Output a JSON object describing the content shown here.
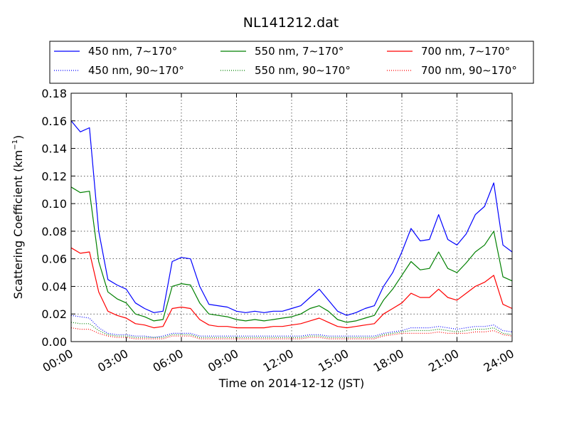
{
  "chart_data": {
    "type": "line",
    "title": "NL141212.dat",
    "xlabel": "Time on 2014-12-12 (JST)",
    "ylabel": "Scattering Coefficient (km",
    "ylabel_sup": "−1",
    "ylabel_end": ")",
    "xlim": [
      "00:00",
      "24:00"
    ],
    "ylim": [
      0.0,
      0.18
    ],
    "grid": true,
    "legend_position": "top, above plot",
    "x_ticks": [
      "00:00",
      "03:00",
      "06:00",
      "09:00",
      "12:00",
      "15:00",
      "18:00",
      "21:00",
      "24:00"
    ],
    "y_ticks": [
      "0.00",
      "0.02",
      "0.04",
      "0.06",
      "0.08",
      "0.10",
      "0.12",
      "0.14",
      "0.16",
      "0.18"
    ],
    "x_hours": [
      0,
      0.5,
      1,
      1.5,
      2,
      2.5,
      3,
      3.5,
      4,
      4.5,
      5,
      5.5,
      6,
      6.5,
      7,
      7.5,
      8,
      8.5,
      9,
      9.5,
      10,
      10.5,
      11,
      11.5,
      12,
      12.5,
      13,
      13.5,
      14,
      14.5,
      15,
      15.5,
      16,
      16.5,
      17,
      17.5,
      18,
      18.5,
      19,
      19.5,
      20,
      20.5,
      21,
      21.5,
      22,
      22.5,
      23,
      23.5,
      24
    ],
    "series": [
      {
        "name": "450 nm, 7∼170°",
        "color": "#0000ff",
        "style": "solid",
        "values": [
          0.16,
          0.152,
          0.155,
          0.08,
          0.045,
          0.041,
          0.038,
          0.028,
          0.024,
          0.021,
          0.022,
          0.058,
          0.061,
          0.06,
          0.04,
          0.027,
          0.026,
          0.025,
          0.022,
          0.021,
          0.022,
          0.021,
          0.022,
          0.022,
          0.024,
          0.026,
          0.032,
          0.038,
          0.03,
          0.022,
          0.019,
          0.021,
          0.024,
          0.026,
          0.04,
          0.05,
          0.065,
          0.082,
          0.073,
          0.074,
          0.092,
          0.074,
          0.07,
          0.078,
          0.092,
          0.098,
          0.115,
          0.07,
          0.065
        ]
      },
      {
        "name": "550 nm, 7∼170°",
        "color": "#008000",
        "style": "solid",
        "values": [
          0.112,
          0.108,
          0.109,
          0.058,
          0.036,
          0.031,
          0.028,
          0.02,
          0.018,
          0.015,
          0.016,
          0.04,
          0.042,
          0.041,
          0.028,
          0.02,
          0.019,
          0.018,
          0.016,
          0.015,
          0.016,
          0.015,
          0.016,
          0.017,
          0.018,
          0.02,
          0.024,
          0.026,
          0.022,
          0.016,
          0.014,
          0.015,
          0.017,
          0.019,
          0.03,
          0.038,
          0.048,
          0.058,
          0.052,
          0.053,
          0.065,
          0.053,
          0.05,
          0.057,
          0.065,
          0.07,
          0.08,
          0.047,
          0.044
        ]
      },
      {
        "name": "700 nm, 7∼170°",
        "color": "#ff0000",
        "style": "solid",
        "values": [
          0.068,
          0.064,
          0.065,
          0.036,
          0.022,
          0.019,
          0.017,
          0.013,
          0.012,
          0.01,
          0.011,
          0.024,
          0.025,
          0.024,
          0.016,
          0.012,
          0.011,
          0.011,
          0.01,
          0.01,
          0.01,
          0.01,
          0.011,
          0.011,
          0.012,
          0.013,
          0.015,
          0.017,
          0.014,
          0.011,
          0.01,
          0.011,
          0.012,
          0.013,
          0.02,
          0.024,
          0.028,
          0.035,
          0.032,
          0.032,
          0.038,
          0.032,
          0.03,
          0.035,
          0.04,
          0.043,
          0.048,
          0.027,
          0.024
        ]
      },
      {
        "name": "450 nm, 90∼170°",
        "color": "#0000ff",
        "style": "dotted",
        "values": [
          0.019,
          0.018,
          0.017,
          0.01,
          0.006,
          0.005,
          0.005,
          0.004,
          0.004,
          0.003,
          0.004,
          0.006,
          0.006,
          0.006,
          0.004,
          0.004,
          0.004,
          0.004,
          0.004,
          0.004,
          0.004,
          0.004,
          0.004,
          0.004,
          0.004,
          0.004,
          0.005,
          0.005,
          0.004,
          0.004,
          0.004,
          0.004,
          0.004,
          0.004,
          0.006,
          0.007,
          0.008,
          0.01,
          0.01,
          0.01,
          0.011,
          0.01,
          0.009,
          0.01,
          0.011,
          0.011,
          0.012,
          0.008,
          0.007
        ]
      },
      {
        "name": "550 nm, 90∼170°",
        "color": "#008000",
        "style": "dotted",
        "values": [
          0.014,
          0.013,
          0.013,
          0.008,
          0.005,
          0.004,
          0.004,
          0.003,
          0.003,
          0.003,
          0.003,
          0.005,
          0.005,
          0.005,
          0.003,
          0.003,
          0.003,
          0.003,
          0.003,
          0.003,
          0.003,
          0.003,
          0.003,
          0.003,
          0.003,
          0.003,
          0.004,
          0.004,
          0.003,
          0.003,
          0.003,
          0.003,
          0.003,
          0.003,
          0.005,
          0.006,
          0.007,
          0.008,
          0.008,
          0.008,
          0.009,
          0.008,
          0.007,
          0.008,
          0.009,
          0.009,
          0.01,
          0.006,
          0.005
        ]
      },
      {
        "name": "700 nm, 90∼170°",
        "color": "#ff0000",
        "style": "dotted",
        "values": [
          0.01,
          0.009,
          0.009,
          0.006,
          0.004,
          0.003,
          0.003,
          0.002,
          0.002,
          0.002,
          0.002,
          0.004,
          0.004,
          0.004,
          0.002,
          0.002,
          0.002,
          0.002,
          0.002,
          0.002,
          0.002,
          0.002,
          0.002,
          0.002,
          0.002,
          0.002,
          0.003,
          0.003,
          0.002,
          0.002,
          0.002,
          0.002,
          0.002,
          0.002,
          0.004,
          0.005,
          0.006,
          0.006,
          0.006,
          0.006,
          0.007,
          0.006,
          0.006,
          0.006,
          0.007,
          0.007,
          0.008,
          0.005,
          0.004
        ]
      }
    ]
  }
}
